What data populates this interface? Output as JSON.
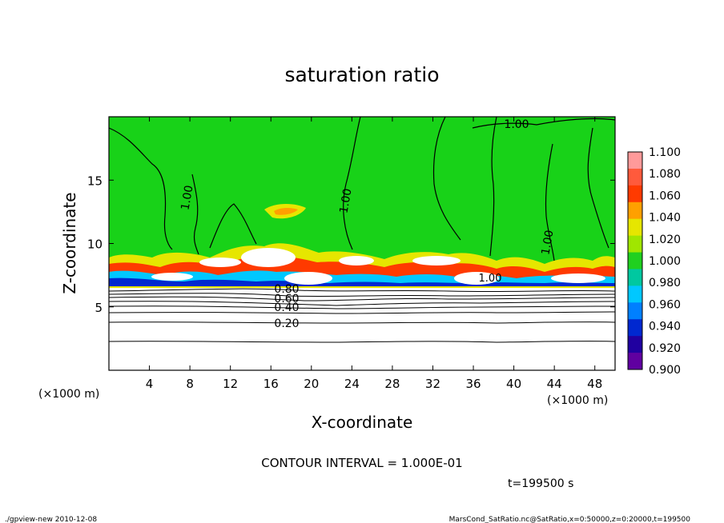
{
  "chart_data": {
    "type": "heatmap",
    "title": "saturation ratio",
    "xlabel": "X-coordinate",
    "ylabel": "Z-coordinate",
    "x_unit": "(×1000 m)",
    "y_unit": "(×1000 m)",
    "xlim": [
      0,
      50
    ],
    "ylim": [
      0,
      20
    ],
    "x_ticks": [
      4,
      8,
      12,
      16,
      20,
      24,
      28,
      32,
      36,
      40,
      44,
      48
    ],
    "y_ticks": [
      5,
      10,
      15
    ],
    "colorbar": {
      "levels": [
        "1.100",
        "1.080",
        "1.060",
        "1.040",
        "1.020",
        "1.000",
        "0.980",
        "0.960",
        "0.940",
        "0.920",
        "0.900"
      ],
      "colors": [
        "#ff9a9a",
        "#ff5a3c",
        "#ff3a00",
        "#ffa000",
        "#e6e600",
        "#a0e600",
        "#20d020",
        "#00c8a0",
        "#00c8ff",
        "#0080ff",
        "#0028d0",
        "#2000a0",
        "#6000a0"
      ]
    },
    "contour_labels": [
      "1.00",
      "1.00",
      "1.00",
      "1.00",
      "1.00",
      "0.80",
      "0.60",
      "0.40",
      "0.20"
    ],
    "contour_interval_text": "CONTOUR INTERVAL = 1.000E-01",
    "time_text": "t=199500 s"
  },
  "footer": {
    "left": "./gpview-new  2010-12-08",
    "right": "MarsCond_SatRatio.nc@SatRatio,x=0:50000,z=0:20000,t=199500"
  },
  "colors": {
    "field": "#18d218",
    "white_band": "#ffffff",
    "contour": "#000000"
  }
}
